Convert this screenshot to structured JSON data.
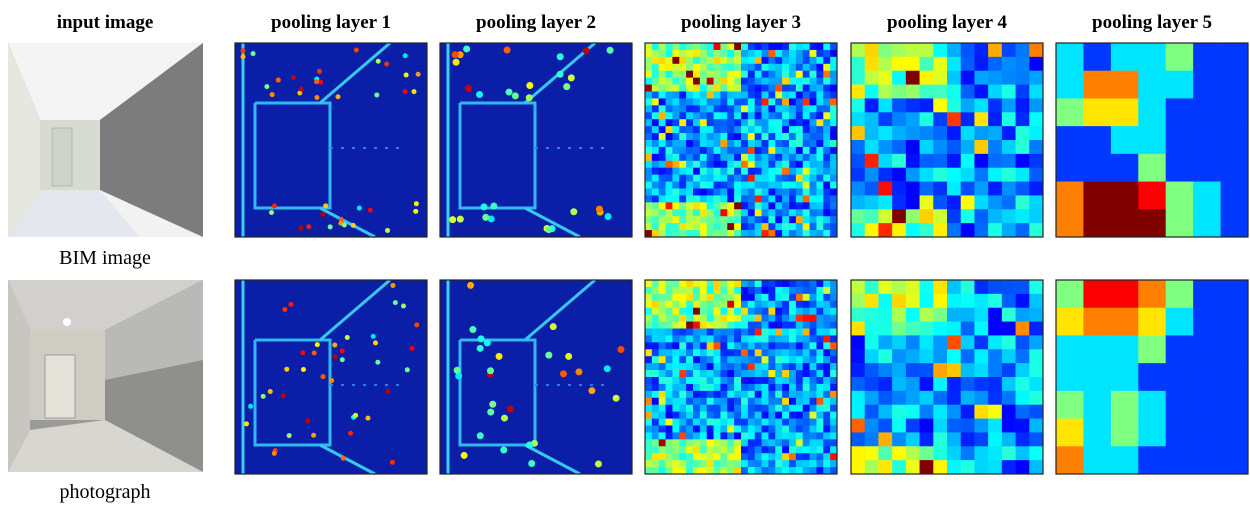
{
  "headers": [
    "input image",
    "pooling layer 1",
    "pooling layer 2",
    "pooling layer 3",
    "pooling layer 4",
    "pooling layer 5"
  ],
  "rows": [
    {
      "label": "BIM image"
    },
    {
      "label": "photograph"
    }
  ]
}
